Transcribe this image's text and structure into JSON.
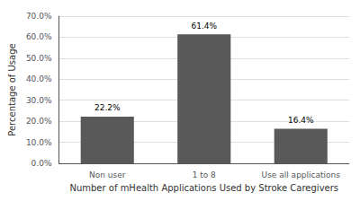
{
  "chart_data": {
    "type": "bar",
    "xlabel": "Number of mHealth Applications Used by Stroke Caregivers",
    "ylabel": "Percentage of Usage",
    "categories": [
      "Non user",
      "1 to 8",
      "Use all applications"
    ],
    "values": [
      22.2,
      61.4,
      16.4
    ],
    "value_labels": [
      "22.2%",
      "61.4%",
      "16.4%"
    ],
    "data_labels": true,
    "color": "#595959",
    "ylim": [
      0,
      70
    ],
    "yticks": [
      {
        "value": 0,
        "label": "0.0%"
      },
      {
        "value": 10,
        "label": "10.0%"
      },
      {
        "value": 20,
        "label": "20.0%"
      },
      {
        "value": 30,
        "label": "30.0%"
      },
      {
        "value": 40,
        "label": "40.0%"
      },
      {
        "value": 50,
        "label": "50.0%"
      },
      {
        "value": 60,
        "label": "60.0%"
      },
      {
        "value": 70,
        "label": "70.0%"
      }
    ],
    "grid": true
  }
}
